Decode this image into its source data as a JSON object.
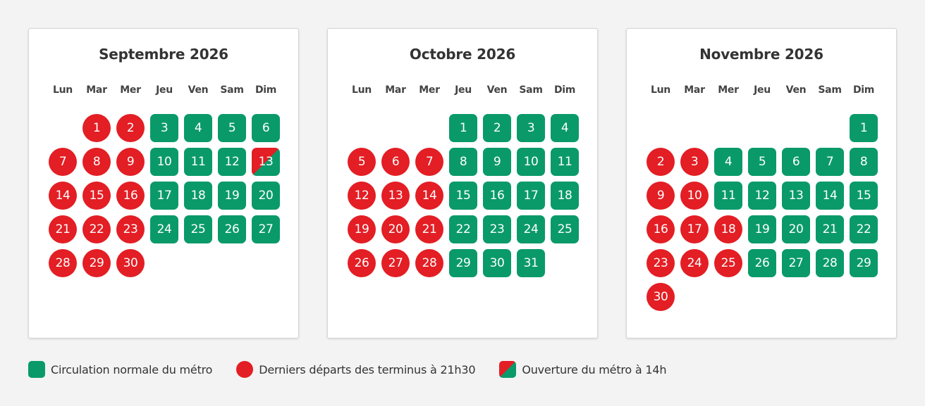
{
  "weekdays": [
    "Lun",
    "Mar",
    "Mer",
    "Jeu",
    "Ven",
    "Sam",
    "Dim"
  ],
  "months": [
    {
      "title": "Septembre 2026",
      "start_offset": 1,
      "days": [
        {
          "d": "1",
          "s": "late"
        },
        {
          "d": "2",
          "s": "late"
        },
        {
          "d": "3",
          "s": "normal"
        },
        {
          "d": "4",
          "s": "normal"
        },
        {
          "d": "5",
          "s": "normal"
        },
        {
          "d": "6",
          "s": "normal"
        },
        {
          "d": "7",
          "s": "late"
        },
        {
          "d": "8",
          "s": "late"
        },
        {
          "d": "9",
          "s": "late"
        },
        {
          "d": "10",
          "s": "normal"
        },
        {
          "d": "11",
          "s": "normal"
        },
        {
          "d": "12",
          "s": "normal"
        },
        {
          "d": "13",
          "s": "split"
        },
        {
          "d": "14",
          "s": "late"
        },
        {
          "d": "15",
          "s": "late"
        },
        {
          "d": "16",
          "s": "late"
        },
        {
          "d": "17",
          "s": "normal"
        },
        {
          "d": "18",
          "s": "normal"
        },
        {
          "d": "19",
          "s": "normal"
        },
        {
          "d": "20",
          "s": "normal"
        },
        {
          "d": "21",
          "s": "late"
        },
        {
          "d": "22",
          "s": "late"
        },
        {
          "d": "23",
          "s": "late"
        },
        {
          "d": "24",
          "s": "normal"
        },
        {
          "d": "25",
          "s": "normal"
        },
        {
          "d": "26",
          "s": "normal"
        },
        {
          "d": "27",
          "s": "normal"
        },
        {
          "d": "28",
          "s": "late"
        },
        {
          "d": "29",
          "s": "late"
        },
        {
          "d": "30",
          "s": "late"
        }
      ]
    },
    {
      "title": "Octobre 2026",
      "start_offset": 3,
      "days": [
        {
          "d": "1",
          "s": "normal"
        },
        {
          "d": "2",
          "s": "normal"
        },
        {
          "d": "3",
          "s": "normal"
        },
        {
          "d": "4",
          "s": "normal"
        },
        {
          "d": "5",
          "s": "late"
        },
        {
          "d": "6",
          "s": "late"
        },
        {
          "d": "7",
          "s": "late"
        },
        {
          "d": "8",
          "s": "normal"
        },
        {
          "d": "9",
          "s": "normal"
        },
        {
          "d": "10",
          "s": "normal"
        },
        {
          "d": "11",
          "s": "normal"
        },
        {
          "d": "12",
          "s": "late"
        },
        {
          "d": "13",
          "s": "late"
        },
        {
          "d": "14",
          "s": "late"
        },
        {
          "d": "15",
          "s": "normal"
        },
        {
          "d": "16",
          "s": "normal"
        },
        {
          "d": "17",
          "s": "normal"
        },
        {
          "d": "18",
          "s": "normal"
        },
        {
          "d": "19",
          "s": "late"
        },
        {
          "d": "20",
          "s": "late"
        },
        {
          "d": "21",
          "s": "late"
        },
        {
          "d": "22",
          "s": "normal"
        },
        {
          "d": "23",
          "s": "normal"
        },
        {
          "d": "24",
          "s": "normal"
        },
        {
          "d": "25",
          "s": "normal"
        },
        {
          "d": "26",
          "s": "late"
        },
        {
          "d": "27",
          "s": "late"
        },
        {
          "d": "28",
          "s": "late"
        },
        {
          "d": "29",
          "s": "normal"
        },
        {
          "d": "30",
          "s": "normal"
        },
        {
          "d": "31",
          "s": "normal"
        }
      ]
    },
    {
      "title": "Novembre 2026",
      "start_offset": 6,
      "days": [
        {
          "d": "1",
          "s": "normal"
        },
        {
          "d": "2",
          "s": "late"
        },
        {
          "d": "3",
          "s": "late"
        },
        {
          "d": "4",
          "s": "normal"
        },
        {
          "d": "5",
          "s": "normal"
        },
        {
          "d": "6",
          "s": "normal"
        },
        {
          "d": "7",
          "s": "normal"
        },
        {
          "d": "8",
          "s": "normal"
        },
        {
          "d": "9",
          "s": "late"
        },
        {
          "d": "10",
          "s": "late"
        },
        {
          "d": "11",
          "s": "normal"
        },
        {
          "d": "12",
          "s": "normal"
        },
        {
          "d": "13",
          "s": "normal"
        },
        {
          "d": "14",
          "s": "normal"
        },
        {
          "d": "15",
          "s": "normal"
        },
        {
          "d": "16",
          "s": "late"
        },
        {
          "d": "17",
          "s": "late"
        },
        {
          "d": "18",
          "s": "late"
        },
        {
          "d": "19",
          "s": "normal"
        },
        {
          "d": "20",
          "s": "normal"
        },
        {
          "d": "21",
          "s": "normal"
        },
        {
          "d": "22",
          "s": "normal"
        },
        {
          "d": "23",
          "s": "late"
        },
        {
          "d": "24",
          "s": "late"
        },
        {
          "d": "25",
          "s": "late"
        },
        {
          "d": "26",
          "s": "normal"
        },
        {
          "d": "27",
          "s": "normal"
        },
        {
          "d": "28",
          "s": "normal"
        },
        {
          "d": "29",
          "s": "normal"
        },
        {
          "d": "30",
          "s": "late"
        }
      ]
    }
  ],
  "legend": [
    {
      "style": "normal",
      "label": "Circulation normale du métro"
    },
    {
      "style": "late",
      "label": "Derniers départs des terminus à 21h30"
    },
    {
      "style": "split",
      "label": "Ouverture du métro à 14h"
    }
  ],
  "colors": {
    "normal": "#0a9a6a",
    "late": "#e31e24",
    "background": "#f3f3f3"
  }
}
